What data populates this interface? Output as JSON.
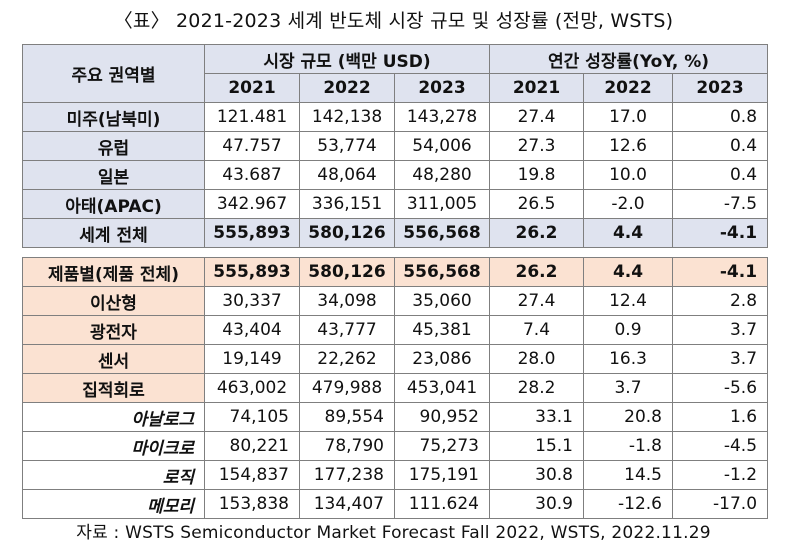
{
  "title": "〈표〉 2021-2023 세계 반도체 시장 규모 및 성장률 (전망, WSTS)",
  "header": {
    "region_col": "주요 권역별",
    "market_group": "시장 규모 (백만 USD)",
    "growth_group": "연간 성장률(YoY, %)",
    "years": [
      "2021",
      "2022",
      "2023"
    ]
  },
  "regions": [
    {
      "name": "미주(남북미)",
      "m2021": "121.481",
      "m2022": "142,138",
      "m2023": "143,278",
      "g2021": "27.4",
      "g2022": "17.0",
      "g2023": "0.8"
    },
    {
      "name": "유럽",
      "m2021": "47.757",
      "m2022": "53,774",
      "m2023": "54,006",
      "g2021": "27.3",
      "g2022": "12.6",
      "g2023": "0.4"
    },
    {
      "name": "일본",
      "m2021": "43.687",
      "m2022": "48,064",
      "m2023": "48,280",
      "g2021": "19.8",
      "g2022": "10.0",
      "g2023": "0.4"
    },
    {
      "name": "아태(APAC)",
      "m2021": "342.967",
      "m2022": "336,151",
      "m2023": "311,005",
      "g2021": "26.5",
      "g2022": "-2.0",
      "g2023": "-7.5"
    }
  ],
  "world_total": {
    "name": "세계 전체",
    "m2021": "555,893",
    "m2022": "580,126",
    "m2023": "556,568",
    "g2021": "26.2",
    "g2022": "4.4",
    "g2023": "-4.1"
  },
  "product_total": {
    "name": "제품별(제품 전체)",
    "m2021": "555,893",
    "m2022": "580,126",
    "m2023": "556,568",
    "g2021": "26.2",
    "g2022": "4.4",
    "g2023": "-4.1"
  },
  "products": [
    {
      "name": "이산형",
      "m2021": "30,337",
      "m2022": "34,098",
      "m2023": "35,060",
      "g2021": "27.4",
      "g2022": "12.4",
      "g2023": "2.8"
    },
    {
      "name": "광전자",
      "m2021": "43,404",
      "m2022": "43,777",
      "m2023": "45,381",
      "g2021": "7.4",
      "g2022": "0.9",
      "g2023": "3.7"
    },
    {
      "name": "센서",
      "m2021": "19,149",
      "m2022": "22,262",
      "m2023": "23,086",
      "g2021": "28.0",
      "g2022": "16.3",
      "g2023": "3.7"
    },
    {
      "name": "집적회로",
      "m2021": "463,002",
      "m2022": "479,988",
      "m2023": "453,041",
      "g2021": "28.2",
      "g2022": "3.7",
      "g2023": "-5.6"
    }
  ],
  "ic_subs": [
    {
      "name": "아날로그",
      "m2021": "74,105",
      "m2022": "89,554",
      "m2023": "90,952",
      "g2021": "33.1",
      "g2022": "20.8",
      "g2023": "1.6"
    },
    {
      "name": "마이크로",
      "m2021": "80,221",
      "m2022": "78,790",
      "m2023": "75,273",
      "g2021": "15.1",
      "g2022": "-1.8",
      "g2023": "-4.5"
    },
    {
      "name": "로직",
      "m2021": "154,837",
      "m2022": "177,238",
      "m2023": "175,191",
      "g2021": "30.8",
      "g2022": "14.5",
      "g2023": "-1.2"
    },
    {
      "name": "메모리",
      "m2021": "153,838",
      "m2022": "134,407",
      "m2023": "111.624",
      "g2021": "30.9",
      "g2022": "-12.6",
      "g2023": "-17.0"
    }
  ],
  "source": "자료 : WSTS Semiconductor Market Forecast Fall 2022, WSTS, 2022.11.29"
}
